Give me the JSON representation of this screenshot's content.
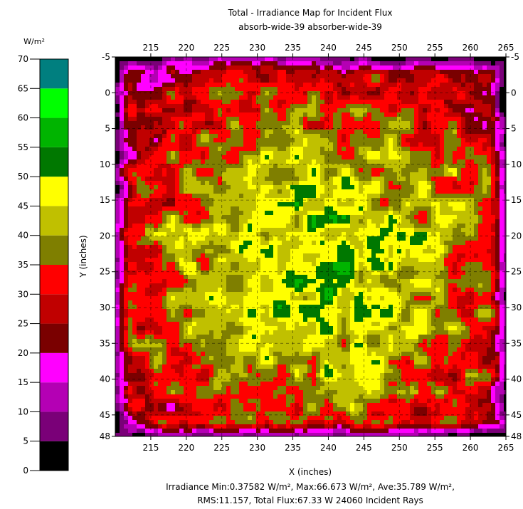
{
  "chart_data": {
    "type": "heatmap",
    "title": "Total - Irradiance Map for Incident Flux",
    "subtitle": "absorb-wide-39 absorber-wide-39",
    "xlabel": "X (inches)",
    "ylabel": "Y (inches)",
    "xlim": [
      210,
      265
    ],
    "ylim": [
      -5,
      48
    ],
    "x_ticks": [
      215,
      220,
      225,
      230,
      235,
      240,
      245,
      250,
      255,
      260,
      265
    ],
    "y_ticks": [
      -5,
      0,
      5,
      10,
      15,
      20,
      25,
      30,
      35,
      40,
      45,
      48
    ],
    "colorbar": {
      "unit": "W/m²",
      "ticks": [
        0,
        5,
        10,
        15,
        20,
        25,
        30,
        35,
        40,
        45,
        50,
        55,
        60,
        65,
        70
      ],
      "bands": [
        {
          "from": 0,
          "to": 5,
          "color": "#000000"
        },
        {
          "from": 5,
          "to": 10,
          "color": "#7a0078"
        },
        {
          "from": 10,
          "to": 15,
          "color": "#b400b4"
        },
        {
          "from": 15,
          "to": 20,
          "color": "#ff00ff"
        },
        {
          "from": 20,
          "to": 25,
          "color": "#7a0000"
        },
        {
          "from": 25,
          "to": 30,
          "color": "#c00000"
        },
        {
          "from": 30,
          "to": 35,
          "color": "#ff0000"
        },
        {
          "from": 35,
          "to": 40,
          "color": "#7f7f00"
        },
        {
          "from": 40,
          "to": 45,
          "color": "#c0c000"
        },
        {
          "from": 45,
          "to": 50,
          "color": "#ffff00"
        },
        {
          "from": 50,
          "to": 55,
          "color": "#007800"
        },
        {
          "from": 55,
          "to": 60,
          "color": "#00b400"
        },
        {
          "from": 60,
          "to": 65,
          "color": "#00ff00"
        },
        {
          "from": 65,
          "to": 70,
          "color": "#007f7f"
        }
      ]
    },
    "grid": true,
    "stats_line1": "Irradiance Min:0.37582 W/m², Max:66.673 W/m², Ave:35.789 W/m²,",
    "stats_line2": "RMS:11.157, Total Flux:67.33 W 24060 Incident Rays"
  }
}
